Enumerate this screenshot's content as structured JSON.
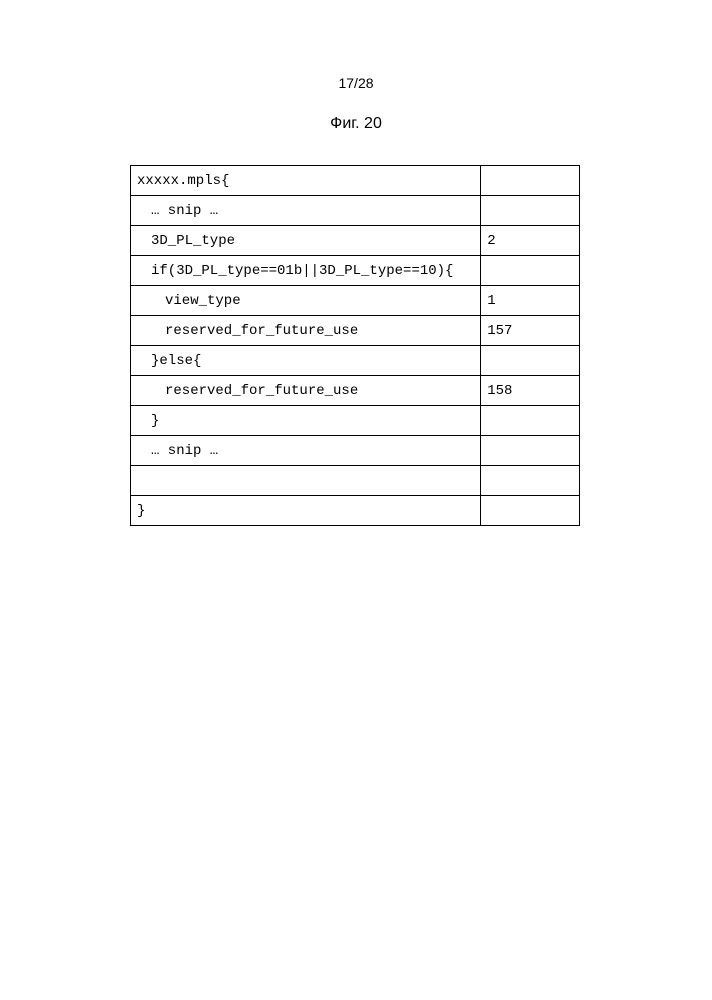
{
  "header": {
    "page_number": "17/28",
    "figure_label": "Фиг. 20"
  },
  "table": {
    "rows": [
      {
        "col1": "xxxxx.mpls{",
        "col2": "",
        "indent": 0
      },
      {
        "col1": "… snip …",
        "col2": "",
        "indent": 1
      },
      {
        "col1": "3D_PL_type",
        "col2": "2",
        "indent": 1
      },
      {
        "col1": "if(3D_PL_type==01b||3D_PL_type==10){",
        "col2": "",
        "indent": 1
      },
      {
        "col1": "view_type",
        "col2": "1",
        "indent": 2
      },
      {
        "col1": "reserved_for_future_use",
        "col2": "157",
        "indent": 2
      },
      {
        "col1": "}else{",
        "col2": "",
        "indent": 1
      },
      {
        "col1": "reserved_for_future_use",
        "col2": "158",
        "indent": 2
      },
      {
        "col1": "}",
        "col2": "",
        "indent": 1
      },
      {
        "col1": "… snip …",
        "col2": "",
        "indent": 1
      },
      {
        "col1": "",
        "col2": "",
        "indent": 0
      },
      {
        "col1": "}",
        "col2": "",
        "indent": 0
      }
    ]
  }
}
